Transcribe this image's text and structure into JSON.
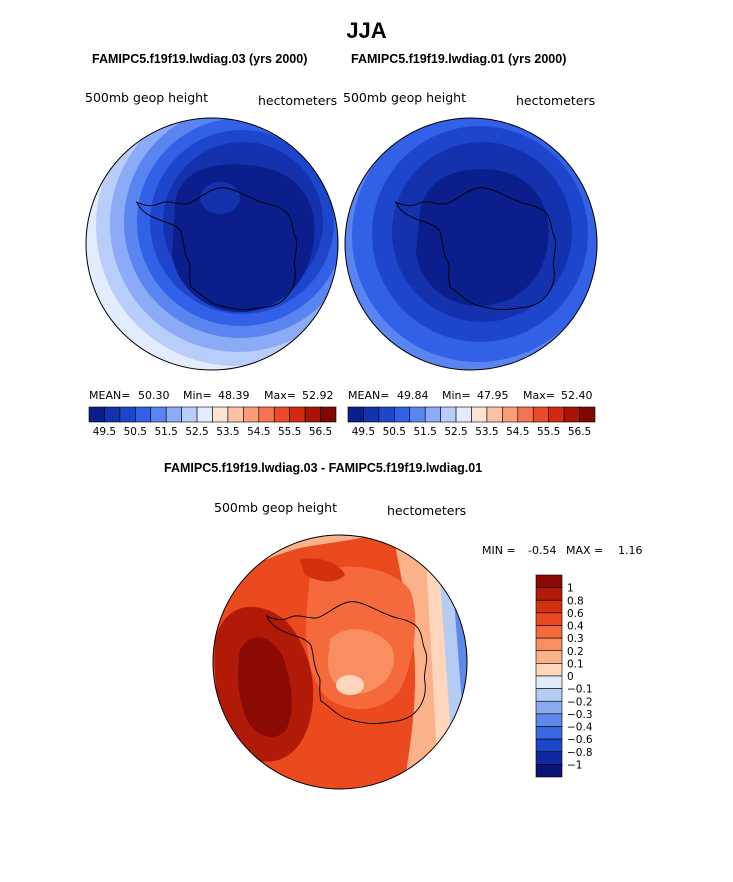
{
  "page": {
    "title": "JJA",
    "panels": [
      {
        "case_title": "FAMIPC5.f19f19.lwdiag.03 (yrs 2000)",
        "variable": "500mb geop height",
        "units": "hectometers",
        "stats": {
          "mean_label": "MEAN=",
          "mean": "50.30",
          "min_label": "Min=",
          "min": "48.39",
          "max_label": "Max=",
          "max": "52.92"
        }
      },
      {
        "case_title": "FAMIPC5.f19f19.lwdiag.01 (yrs 2000)",
        "variable": "500mb geop height",
        "units": "hectometers",
        "stats": {
          "mean_label": "MEAN=",
          "mean": "49.84",
          "min_label": "Min=",
          "min": "47.95",
          "max_label": "Max=",
          "max": "52.40"
        }
      }
    ],
    "diff_panel": {
      "case_title": "FAMIPC5.f19f19.lwdiag.03 - FAMIPC5.f19f19.lwdiag.01",
      "variable": "500mb geop height",
      "units": "hectometers",
      "minmax": {
        "min_label": "MIN =",
        "min": "-0.54",
        "max_label": "MAX =",
        "max": "1.16"
      }
    }
  },
  "chart_data": [
    {
      "type": "heatmap",
      "projection": "south-polar-stereographic",
      "title": "FAMIPC5.f19f19.lwdiag.03 (yrs 2000)",
      "variable": "500mb geop height",
      "units": "hectometers",
      "mean": 50.3,
      "min": 48.39,
      "max": 52.92,
      "levels": [
        49.5,
        50,
        50.5,
        51,
        51.5,
        52,
        52.5,
        53,
        53.5,
        54,
        54.5,
        55,
        55.5,
        56,
        56.5
      ],
      "tick_labels": [
        "49.5",
        "50.5",
        "51.5",
        "52.5",
        "53.5",
        "54.5",
        "55.5",
        "56.5"
      ],
      "colors": [
        "#0a1e8c",
        "#1432ad",
        "#1e46cd",
        "#3260e6",
        "#5a84f0",
        "#8cabf6",
        "#b9cdfa",
        "#e2ecfc",
        "#fde3d2",
        "#fcc2a3",
        "#fa9c78",
        "#f47452",
        "#ea4b2c",
        "#d22a12",
        "#aa1404",
        "#7d0a02"
      ]
    },
    {
      "type": "heatmap",
      "projection": "south-polar-stereographic",
      "title": "FAMIPC5.f19f19.lwdiag.01 (yrs 2000)",
      "variable": "500mb geop height",
      "units": "hectometers",
      "mean": 49.84,
      "min": 47.95,
      "max": 52.4,
      "levels": [
        49.5,
        50,
        50.5,
        51,
        51.5,
        52,
        52.5,
        53,
        53.5,
        54,
        54.5,
        55,
        55.5,
        56,
        56.5
      ],
      "tick_labels": [
        "49.5",
        "50.5",
        "51.5",
        "52.5",
        "53.5",
        "54.5",
        "55.5",
        "56.5"
      ],
      "colors": [
        "#0a1e8c",
        "#1432ad",
        "#1e46cd",
        "#3260e6",
        "#5a84f0",
        "#8cabf6",
        "#b9cdfa",
        "#e2ecfc",
        "#fde3d2",
        "#fcc2a3",
        "#fa9c78",
        "#f47452",
        "#ea4b2c",
        "#d22a12",
        "#aa1404",
        "#7d0a02"
      ]
    },
    {
      "type": "heatmap",
      "projection": "south-polar-stereographic",
      "title": "FAMIPC5.f19f19.lwdiag.03 - FAMIPC5.f19f19.lwdiag.01",
      "variable": "500mb geop height",
      "units": "hectometers",
      "min": -0.54,
      "max": 1.16,
      "levels": [
        1,
        0.8,
        0.6,
        0.4,
        0.3,
        0.2,
        0.1,
        0,
        -0.1,
        -0.2,
        -0.3,
        -0.4,
        -0.6,
        -0.8,
        -1
      ],
      "tick_labels": [
        "1",
        "0.8",
        "0.6",
        "0.4",
        "0.3",
        "0.2",
        "0.1",
        "0",
        "−0.1",
        "−0.2",
        "−0.3",
        "−0.4",
        "−0.6",
        "−0.8",
        "−1"
      ],
      "colors": [
        "#8c0a04",
        "#b21a08",
        "#d2300f",
        "#ea4a1e",
        "#f46a3c",
        "#f98e60",
        "#fbb18a",
        "#fdd6bc",
        "#e0ecfa",
        "#b4cbf2",
        "#8aaaee",
        "#5e88ea",
        "#3a68e0",
        "#1e46c8",
        "#1028a0",
        "#0a1478"
      ]
    }
  ]
}
